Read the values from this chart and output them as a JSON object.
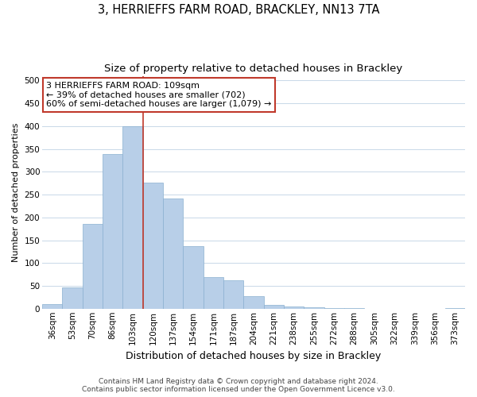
{
  "title": "3, HERRIEFFS FARM ROAD, BRACKLEY, NN13 7TA",
  "subtitle": "Size of property relative to detached houses in Brackley",
  "xlabel": "Distribution of detached houses by size in Brackley",
  "ylabel": "Number of detached properties",
  "categories": [
    "36sqm",
    "53sqm",
    "70sqm",
    "86sqm",
    "103sqm",
    "120sqm",
    "137sqm",
    "154sqm",
    "171sqm",
    "187sqm",
    "204sqm",
    "221sqm",
    "238sqm",
    "255sqm",
    "272sqm",
    "288sqm",
    "305sqm",
    "322sqm",
    "339sqm",
    "356sqm",
    "373sqm"
  ],
  "values": [
    10,
    46,
    185,
    338,
    400,
    277,
    242,
    137,
    70,
    62,
    27,
    8,
    5,
    3,
    2,
    1,
    0,
    0,
    0,
    0,
    2
  ],
  "bar_color": "#b8cfe8",
  "bar_edge_color": "#8ab0d0",
  "vline_index": 4,
  "vline_color": "#c0392b",
  "ylim": [
    0,
    510
  ],
  "yticks": [
    0,
    50,
    100,
    150,
    200,
    250,
    300,
    350,
    400,
    450,
    500
  ],
  "annotation_line1": "3 HERRIEFFS FARM ROAD: 109sqm",
  "annotation_line2": "← 39% of detached houses are smaller (702)",
  "annotation_line3": "60% of semi-detached houses are larger (1,079) →",
  "annotation_box_color": "#ffffff",
  "annotation_box_edge_color": "#c0392b",
  "footer_line1": "Contains HM Land Registry data © Crown copyright and database right 2024.",
  "footer_line2": "Contains public sector information licensed under the Open Government Licence v3.0.",
  "bg_color": "#ffffff",
  "grid_color": "#c8d8e8",
  "title_fontsize": 10.5,
  "subtitle_fontsize": 9.5,
  "xlabel_fontsize": 9,
  "ylabel_fontsize": 8,
  "tick_fontsize": 7.5,
  "annotation_fontsize": 8,
  "footer_fontsize": 6.5
}
